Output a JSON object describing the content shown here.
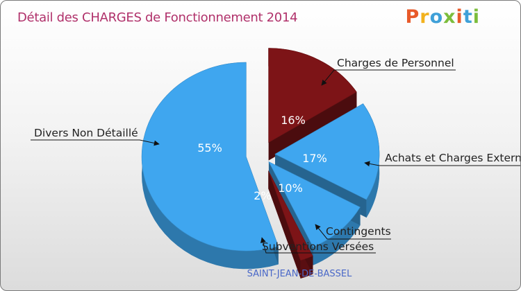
{
  "chart_data": {
    "type": "pie",
    "title": "Détail des CHARGES de Fonctionnement 2014",
    "subtitle": "SAINT-JEAN-DE-BASSEL",
    "categories": [
      "Charges de Personnel",
      "Achats et Charges Externes",
      "Contingents",
      "Subventions Versées",
      "Divers Non Détaillé"
    ],
    "values": [
      16,
      17,
      10,
      2,
      55
    ],
    "labels": [
      "16%",
      "17%",
      "10%",
      "2%",
      "55%"
    ],
    "colors": [
      "#7d1417",
      "#3fa6ef",
      "#3fa6ef",
      "#7d1417",
      "#3fa6ef"
    ]
  },
  "logo": [
    "P",
    "r",
    "o",
    "x",
    "i",
    "t",
    "i"
  ]
}
